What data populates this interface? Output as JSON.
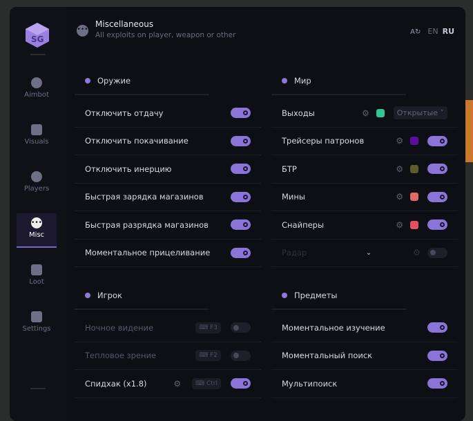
{
  "header": {
    "title": "Miscellaneous",
    "subtitle": "All exploits on player, weapon or other",
    "lang_en": "EN",
    "lang_ru": "RU"
  },
  "sidebar": {
    "items": [
      {
        "label": "Aimbot",
        "icon": "alien-icon"
      },
      {
        "label": "Visuals",
        "icon": "vr-headset-icon"
      },
      {
        "label": "Players",
        "icon": "users-icon"
      },
      {
        "label": "Misc",
        "icon": "dots-icon",
        "active": true
      },
      {
        "label": "Loot",
        "icon": "briefcase-icon"
      },
      {
        "label": "Settings",
        "icon": "list-icon"
      }
    ]
  },
  "colors": {
    "accent": "#8b74d8",
    "exits": "#2fc693",
    "tracers": "#5a0fa0",
    "btr": "#5c5d2a",
    "mines": "#e06868",
    "snipers": "#e05060"
  },
  "weapon": {
    "title": "Оружие",
    "rows": [
      {
        "label": "Отключить отдачу",
        "on": true
      },
      {
        "label": "Отключить покачивание",
        "on": true
      },
      {
        "label": "Отключить инерцию",
        "on": true
      },
      {
        "label": "Быстрая зарядка магазинов",
        "on": true
      },
      {
        "label": "Быстрая разрядка магазинов",
        "on": true
      },
      {
        "label": "Моментальное прицеливание",
        "on": true
      }
    ]
  },
  "world": {
    "title": "Мир",
    "rows": [
      {
        "label": "Выходы",
        "select": "Открытые"
      },
      {
        "label": "Трейсеры патронов",
        "on": true
      },
      {
        "label": "БТР",
        "on": true
      },
      {
        "label": "Мины",
        "on": true
      },
      {
        "label": "Снайперы",
        "on": true
      },
      {
        "label": "Радар",
        "on": false
      }
    ]
  },
  "player": {
    "title": "Игрок",
    "rows": [
      {
        "label": "Ночное видение",
        "key": "F3",
        "on": false
      },
      {
        "label": "Тепловое зрение",
        "key": "F2",
        "on": false
      },
      {
        "label": "Спидхак (x1.8)",
        "key": "Ctrl",
        "on": true
      }
    ]
  },
  "items": {
    "title": "Предметы",
    "rows": [
      {
        "label": "Моментальное изучение",
        "on": true
      },
      {
        "label": "Моментальный поиск",
        "on": true
      },
      {
        "label": "Мультипоиск",
        "on": true
      }
    ]
  }
}
